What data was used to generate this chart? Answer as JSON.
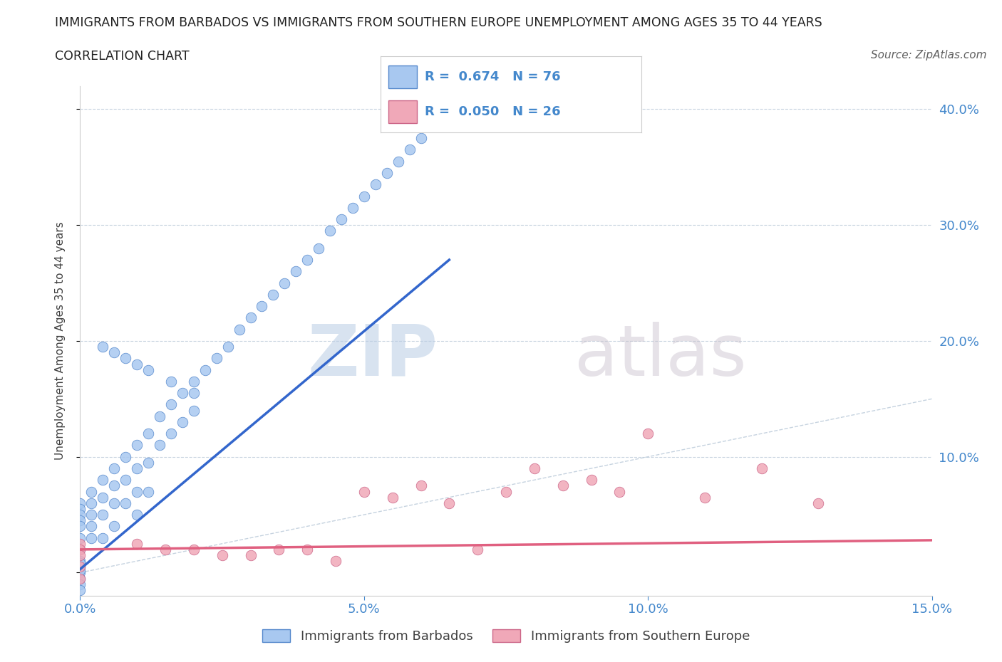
{
  "title_line1": "IMMIGRANTS FROM BARBADOS VS IMMIGRANTS FROM SOUTHERN EUROPE UNEMPLOYMENT AMONG AGES 35 TO 44 YEARS",
  "title_line2": "CORRELATION CHART",
  "source_text": "Source: ZipAtlas.com",
  "xlabel": "",
  "ylabel": "Unemployment Among Ages 35 to 44 years",
  "xmin": 0.0,
  "xmax": 0.15,
  "ymin": -0.02,
  "ymax": 0.42,
  "yticks": [
    0.0,
    0.1,
    0.2,
    0.3,
    0.4
  ],
  "ytick_labels": [
    "",
    "10.0%",
    "20.0%",
    "30.0%",
    "40.0%"
  ],
  "xticks": [
    0.0,
    0.05,
    0.1,
    0.15
  ],
  "xtick_labels": [
    "0.0%",
    "5.0%",
    "10.0%",
    "15.0%"
  ],
  "series1_label": "Immigrants from Barbados",
  "series2_label": "Immigrants from Southern Europe",
  "series1_color": "#a8c8f0",
  "series2_color": "#f0a8b8",
  "series1_edge_color": "#5588cc",
  "series2_edge_color": "#cc6688",
  "series1_line_color": "#3366cc",
  "series2_line_color": "#e06080",
  "ref_line_color": "#b8c8d8",
  "background_color": "#ffffff",
  "grid_color": "#c8d4e0",
  "title_color": "#202020",
  "source_color": "#606060",
  "tick_color": "#4488cc",
  "barbados_x": [
    0.0,
    0.0,
    0.0,
    0.0,
    0.0,
    0.0,
    0.0,
    0.0,
    0.0,
    0.0,
    0.0,
    0.0,
    0.0,
    0.0,
    0.0,
    0.002,
    0.002,
    0.002,
    0.002,
    0.002,
    0.004,
    0.004,
    0.004,
    0.004,
    0.006,
    0.006,
    0.006,
    0.006,
    0.008,
    0.008,
    0.008,
    0.01,
    0.01,
    0.01,
    0.01,
    0.012,
    0.012,
    0.012,
    0.014,
    0.014,
    0.016,
    0.016,
    0.018,
    0.018,
    0.02,
    0.02,
    0.022,
    0.024,
    0.026,
    0.028,
    0.03,
    0.032,
    0.034,
    0.036,
    0.038,
    0.04,
    0.042,
    0.044,
    0.046,
    0.048,
    0.05,
    0.052,
    0.054,
    0.056,
    0.058,
    0.06,
    0.062,
    0.064,
    0.004,
    0.006,
    0.008,
    0.01,
    0.012,
    0.016,
    0.02
  ],
  "barbados_y": [
    0.06,
    0.055,
    0.05,
    0.045,
    0.04,
    0.03,
    0.02,
    0.01,
    0.005,
    0.0,
    -0.005,
    -0.01,
    -0.015,
    0.002,
    0.008,
    0.07,
    0.06,
    0.05,
    0.04,
    0.03,
    0.08,
    0.065,
    0.05,
    0.03,
    0.09,
    0.075,
    0.06,
    0.04,
    0.1,
    0.08,
    0.06,
    0.11,
    0.09,
    0.07,
    0.05,
    0.12,
    0.095,
    0.07,
    0.135,
    0.11,
    0.145,
    0.12,
    0.155,
    0.13,
    0.165,
    0.14,
    0.175,
    0.185,
    0.195,
    0.21,
    0.22,
    0.23,
    0.24,
    0.25,
    0.26,
    0.27,
    0.28,
    0.295,
    0.305,
    0.315,
    0.325,
    0.335,
    0.345,
    0.355,
    0.365,
    0.375,
    0.385,
    0.395,
    0.195,
    0.19,
    0.185,
    0.18,
    0.175,
    0.165,
    0.155
  ],
  "seurope_x": [
    0.0,
    0.0,
    0.0,
    0.0,
    0.0,
    0.01,
    0.015,
    0.02,
    0.025,
    0.03,
    0.035,
    0.04,
    0.045,
    0.05,
    0.055,
    0.06,
    0.065,
    0.07,
    0.075,
    0.08,
    0.085,
    0.09,
    0.095,
    0.1,
    0.11,
    0.12,
    0.13
  ],
  "seurope_y": [
    0.025,
    0.02,
    0.015,
    0.005,
    -0.005,
    0.025,
    0.02,
    0.02,
    0.015,
    0.015,
    0.02,
    0.02,
    0.01,
    0.07,
    0.065,
    0.075,
    0.06,
    0.02,
    0.07,
    0.09,
    0.075,
    0.08,
    0.07,
    0.12,
    0.065,
    0.09,
    0.06
  ],
  "blue_line_x0": 0.0,
  "blue_line_y0": 0.003,
  "blue_line_x1": 0.065,
  "blue_line_y1": 0.27,
  "pink_line_x0": 0.0,
  "pink_line_y0": 0.02,
  "pink_line_x1": 0.15,
  "pink_line_y1": 0.028
}
